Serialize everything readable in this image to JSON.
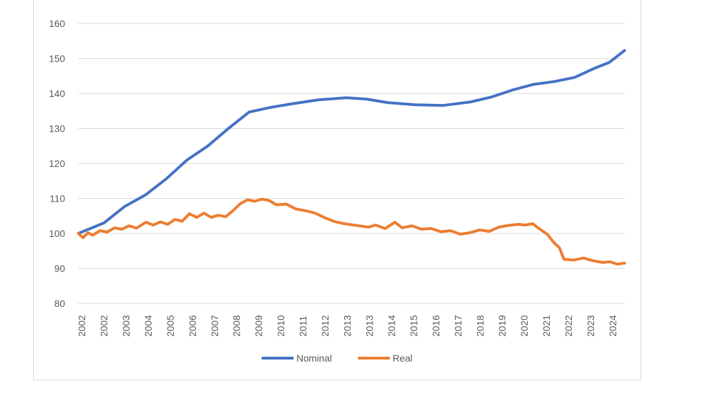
{
  "chart_data": {
    "type": "line",
    "title": "",
    "xlabel": "",
    "ylabel": "",
    "ylim": [
      80,
      160
    ],
    "yticks": [
      80,
      90,
      100,
      110,
      120,
      130,
      140,
      150,
      160
    ],
    "xlim": [
      2002.0,
      2024.6
    ],
    "x_tick_labels": [
      "2002",
      "2002",
      "2003",
      "2004",
      "2005",
      "2006",
      "2007",
      "2008",
      "2009",
      "2010",
      "2011",
      "2012",
      "2013",
      "2013",
      "2014",
      "2015",
      "2016",
      "2017",
      "2018",
      "2019",
      "2020",
      "2021",
      "2022",
      "2023",
      "2024"
    ],
    "grid": "horizontal",
    "legend_position": "bottom",
    "series": [
      {
        "name": "Nominal",
        "color": "#4472C4",
        "x": [
          2002.0,
          2003.06,
          2003.92,
          2004.78,
          2005.64,
          2006.5,
          2007.36,
          2008.21,
          2009.07,
          2009.93,
          2010.79,
          2011.94,
          2013.08,
          2013.94,
          2014.8,
          2015.95,
          2017.09,
          2018.24,
          2019.1,
          2019.96,
          2020.82,
          2021.68,
          2022.53,
          2023.39,
          2023.97,
          2024.6
        ],
        "y": [
          100,
          103,
          107.7,
          111,
          115.6,
          121,
          125,
          130,
          134.7,
          136,
          137,
          138.2,
          138.8,
          138.4,
          137.4,
          136.8,
          136.6,
          137.6,
          139,
          141,
          142.6,
          143.4,
          144.6,
          147.3,
          148.9,
          152.3
        ]
      },
      {
        "name": "Real",
        "color": "#ED7D31",
        "x": [
          2002.0,
          2002.2,
          2002.4,
          2002.6,
          2002.9,
          2003.2,
          2003.5,
          2003.8,
          2004.1,
          2004.4,
          2004.8,
          2005.1,
          2005.4,
          2005.7,
          2006.0,
          2006.3,
          2006.6,
          2006.9,
          2007.2,
          2007.5,
          2007.8,
          2008.1,
          2008.4,
          2008.7,
          2009.0,
          2009.3,
          2009.6,
          2009.9,
          2010.2,
          2010.6,
          2011.0,
          2011.4,
          2011.8,
          2012.2,
          2012.6,
          2013.0,
          2013.5,
          2014.0,
          2014.3,
          2014.7,
          2015.1,
          2015.4,
          2015.8,
          2016.2,
          2016.6,
          2017.0,
          2017.4,
          2017.8,
          2018.2,
          2018.6,
          2019.0,
          2019.4,
          2019.8,
          2020.2,
          2020.5,
          2020.8,
          2021.1,
          2021.4,
          2021.7,
          2021.9,
          2022.1,
          2022.5,
          2022.9,
          2023.3,
          2023.7,
          2024.0,
          2024.3,
          2024.6
        ],
        "y": [
          100,
          98.8,
          100.2,
          99.5,
          100.8,
          100.4,
          101.6,
          101.2,
          102.2,
          101.5,
          103.2,
          102.4,
          103.3,
          102.6,
          104,
          103.5,
          105.6,
          104.6,
          105.8,
          104.6,
          105.2,
          104.8,
          106.5,
          108.5,
          109.6,
          109.2,
          109.8,
          109.4,
          108.2,
          108.4,
          107,
          106.5,
          105.8,
          104.5,
          103.4,
          102.8,
          102.3,
          101.8,
          102.4,
          101.4,
          103.2,
          101.6,
          102.2,
          101.2,
          101.4,
          100.5,
          100.8,
          99.8,
          100.2,
          101,
          100.6,
          101.8,
          102.3,
          102.6,
          102.4,
          102.8,
          101.2,
          99.8,
          97.2,
          96,
          92.6,
          92.4,
          93,
          92.2,
          91.7,
          91.9,
          91.2,
          91.5
        ]
      }
    ]
  }
}
